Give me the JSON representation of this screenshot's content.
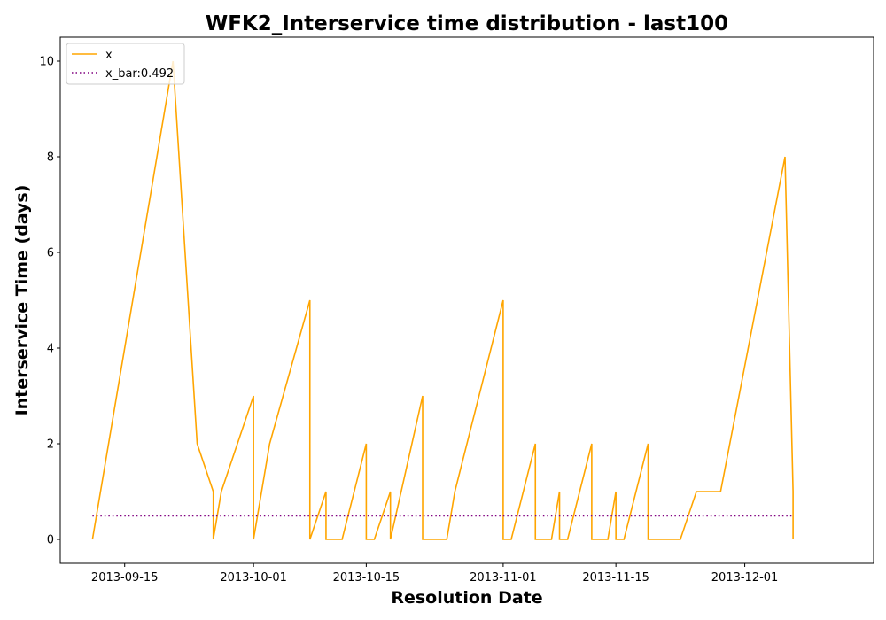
{
  "chart_data": {
    "type": "line",
    "title": "WFK2_Interservice time distribution - last100",
    "xlabel": "Resolution Date",
    "ylabel": "Interservice Time (days)",
    "xlim": [
      "2013-09-07",
      "2013-12-17"
    ],
    "ylim": [
      -0.5,
      10.5
    ],
    "x_ticks": [
      {
        "date": "2013-09-15",
        "label": "2013-09-15"
      },
      {
        "date": "2013-10-01",
        "label": "2013-10-01"
      },
      {
        "date": "2013-10-15",
        "label": "2013-10-15"
      },
      {
        "date": "2013-11-01",
        "label": "2013-11-01"
      },
      {
        "date": "2013-11-15",
        "label": "2013-11-15"
      },
      {
        "date": "2013-12-01",
        "label": "2013-12-01"
      }
    ],
    "y_ticks": [
      {
        "value": 0,
        "label": "0"
      },
      {
        "value": 2,
        "label": "2"
      },
      {
        "value": 4,
        "label": "4"
      },
      {
        "value": 6,
        "label": "6"
      },
      {
        "value": 8,
        "label": "8"
      },
      {
        "value": 10,
        "label": "10"
      }
    ],
    "grid": false,
    "legend": {
      "placement": "top-left",
      "entries": [
        {
          "label": "x",
          "color": "#ffa500",
          "style": "solid"
        },
        {
          "label": "x_bar:0.492",
          "color": "#800080",
          "style": "dotted"
        }
      ]
    },
    "series": [
      {
        "name": "x",
        "color": "#ffa500",
        "style": "solid",
        "x": [
          "2013-09-11",
          "2013-09-21",
          "2013-09-21",
          "2013-09-24",
          "2013-09-26",
          "2013-09-26",
          "2013-09-27",
          "2013-10-01",
          "2013-10-01",
          "2013-10-03",
          "2013-10-08",
          "2013-10-08",
          "2013-10-10",
          "2013-10-10",
          "2013-10-12",
          "2013-10-15",
          "2013-10-15",
          "2013-10-16",
          "2013-10-18",
          "2013-10-18",
          "2013-10-22",
          "2013-10-22",
          "2013-10-25",
          "2013-10-26",
          "2013-11-01",
          "2013-11-01",
          "2013-11-02",
          "2013-11-05",
          "2013-11-05",
          "2013-11-07",
          "2013-11-08",
          "2013-11-08",
          "2013-11-09",
          "2013-11-12",
          "2013-11-12",
          "2013-11-14",
          "2013-11-15",
          "2013-11-15",
          "2013-11-16",
          "2013-11-19",
          "2013-11-19",
          "2013-11-23",
          "2013-11-25",
          "2013-11-28",
          "2013-12-06",
          "2013-12-07",
          "2013-12-07"
        ],
        "y": [
          0,
          10,
          10,
          2,
          1,
          0,
          1,
          3,
          0,
          2,
          5,
          0,
          1,
          0,
          0,
          2,
          0,
          0,
          1,
          0,
          3,
          0,
          0,
          1,
          5,
          0,
          0,
          2,
          0,
          0,
          1,
          0,
          0,
          2,
          0,
          0,
          1,
          0,
          0,
          2,
          0,
          0,
          1,
          1,
          8,
          1,
          0
        ]
      },
      {
        "name": "x_bar:0.492",
        "color": "#800080",
        "style": "dotted",
        "x": [
          "2013-09-11",
          "2013-12-07"
        ],
        "y": [
          0.492,
          0.492
        ]
      }
    ]
  }
}
